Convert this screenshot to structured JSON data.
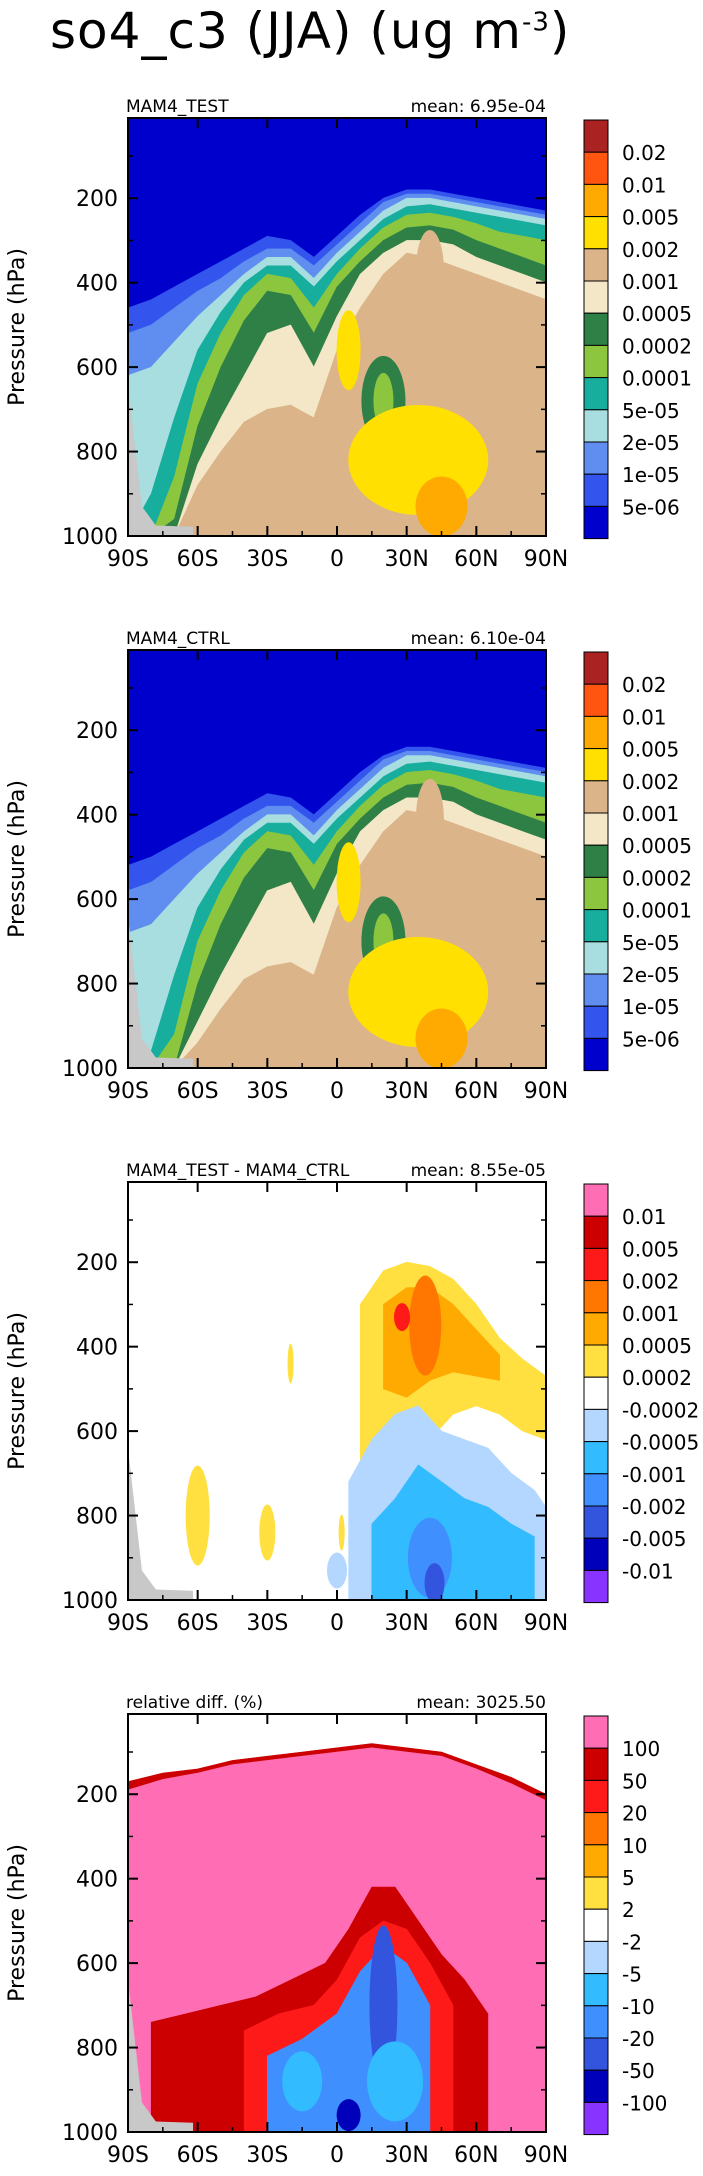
{
  "title": {
    "variable": "so4_c3",
    "season": "(JJA)",
    "units_prefix": "(ug m",
    "units_exponent": "-3",
    "units_suffix": ")"
  },
  "chart_data": [
    {
      "type": "heatmap",
      "panel": "MAM4_TEST",
      "left_label": "MAM4_TEST",
      "right_label": "mean: 6.95e-04",
      "ylabel": "Pressure (hPa)",
      "xlabel": "",
      "x_ticks": [
        "90S",
        "60S",
        "30S",
        "0",
        "30N",
        "60N",
        "90N"
      ],
      "y_ticks": [
        "200",
        "400",
        "600",
        "800",
        "1000"
      ],
      "xlim": [
        -90,
        90
      ],
      "ylim": [
        1000,
        10
      ],
      "legend": "right",
      "colorbar_labels": [
        "0.02",
        "0.01",
        "0.005",
        "0.002",
        "0.001",
        "0.0005",
        "0.0002",
        "0.0001",
        "5e-05",
        "2e-05",
        "1e-05",
        "5e-06"
      ],
      "colorbar_colors": [
        "#aa2222",
        "#ff5511",
        "#ffaa00",
        "#ffe000",
        "#dbb48a",
        "#f3e7c7",
        "#2f8047",
        "#8cc63f",
        "#17ae9e",
        "#a8dedf",
        "#5f8ef0",
        "#3355ee",
        "#0000cc"
      ]
    },
    {
      "type": "heatmap",
      "panel": "MAM4_CTRL",
      "left_label": "MAM4_CTRL",
      "right_label": "mean: 6.10e-04",
      "ylabel": "Pressure (hPa)",
      "xlabel": "",
      "x_ticks": [
        "90S",
        "60S",
        "30S",
        "0",
        "30N",
        "60N",
        "90N"
      ],
      "y_ticks": [
        "200",
        "400",
        "600",
        "800",
        "1000"
      ],
      "xlim": [
        -90,
        90
      ],
      "ylim": [
        1000,
        10
      ],
      "legend": "right",
      "colorbar_labels": [
        "0.02",
        "0.01",
        "0.005",
        "0.002",
        "0.001",
        "0.0005",
        "0.0002",
        "0.0001",
        "5e-05",
        "2e-05",
        "1e-05",
        "5e-06"
      ],
      "colorbar_colors": [
        "#aa2222",
        "#ff5511",
        "#ffaa00",
        "#ffe000",
        "#dbb48a",
        "#f3e7c7",
        "#2f8047",
        "#8cc63f",
        "#17ae9e",
        "#a8dedf",
        "#5f8ef0",
        "#3355ee",
        "#0000cc"
      ]
    },
    {
      "type": "heatmap",
      "panel": "difference",
      "left_label": "MAM4_TEST - MAM4_CTRL",
      "right_label": "mean: 8.55e-05",
      "ylabel": "Pressure (hPa)",
      "xlabel": "",
      "x_ticks": [
        "90S",
        "60S",
        "30S",
        "0",
        "30N",
        "60N",
        "90N"
      ],
      "y_ticks": [
        "200",
        "400",
        "600",
        "800",
        "1000"
      ],
      "xlim": [
        -90,
        90
      ],
      "ylim": [
        1000,
        10
      ],
      "legend": "right",
      "colorbar_labels": [
        "0.01",
        "0.005",
        "0.002",
        "0.001",
        "0.0005",
        "0.0002",
        "-0.0002",
        "-0.0005",
        "-0.001",
        "-0.002",
        "-0.005",
        "-0.01"
      ],
      "colorbar_colors": [
        "#ff6eb4",
        "#cc0000",
        "#ff1a1a",
        "#ff7700",
        "#ffaa00",
        "#ffe040",
        "#ffffff",
        "#b3d7ff",
        "#33bbff",
        "#3f8fff",
        "#3355dd",
        "#0000bb",
        "#8833ff"
      ]
    },
    {
      "type": "heatmap",
      "panel": "relative difference",
      "left_label": "relative diff. (%)",
      "right_label": "mean: 3025.50",
      "ylabel": "Pressure (hPa)",
      "xlabel": "",
      "x_ticks": [
        "90S",
        "60S",
        "30S",
        "0",
        "30N",
        "60N",
        "90N"
      ],
      "y_ticks": [
        "200",
        "400",
        "600",
        "800",
        "1000"
      ],
      "xlim": [
        -90,
        90
      ],
      "ylim": [
        1000,
        10
      ],
      "legend": "right",
      "colorbar_labels": [
        "100",
        "50",
        "20",
        "10",
        "5",
        "2",
        "-2",
        "-5",
        "-10",
        "-20",
        "-50",
        "-100"
      ],
      "colorbar_colors": [
        "#ff6eb4",
        "#cc0000",
        "#ff1a1a",
        "#ff7700",
        "#ffaa00",
        "#ffe040",
        "#ffffff",
        "#b3d7ff",
        "#33bbff",
        "#3f8fff",
        "#3355dd",
        "#0000bb",
        "#8833ff"
      ]
    }
  ]
}
